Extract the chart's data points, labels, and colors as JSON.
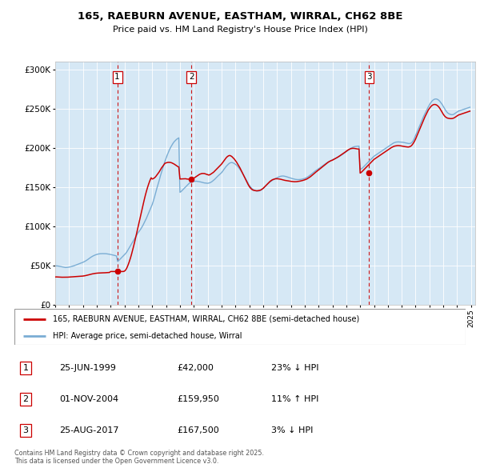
{
  "title": "165, RAEBURN AVENUE, EASTHAM, WIRRAL, CH62 8BE",
  "subtitle": "Price paid vs. HM Land Registry's House Price Index (HPI)",
  "price_color": "#cc0000",
  "hpi_color": "#7aadd4",
  "shade_color": "#d6e8f5",
  "ylim": [
    0,
    310000
  ],
  "yticks": [
    0,
    50000,
    100000,
    150000,
    200000,
    250000,
    300000
  ],
  "ytick_labels": [
    "£0",
    "£50K",
    "£100K",
    "£150K",
    "£200K",
    "£250K",
    "£300K"
  ],
  "sales": [
    {
      "date_num": 1999.48,
      "price": 42000,
      "label": "1"
    },
    {
      "date_num": 2004.83,
      "price": 159950,
      "label": "2"
    },
    {
      "date_num": 2017.65,
      "price": 167500,
      "label": "3"
    }
  ],
  "sale_vline_color": "#cc0000",
  "transactions": [
    {
      "num": "1",
      "date": "25-JUN-1999",
      "price": "£42,000",
      "hpi_diff": "23% ↓ HPI"
    },
    {
      "num": "2",
      "date": "01-NOV-2004",
      "price": "£159,950",
      "hpi_diff": "11% ↑ HPI"
    },
    {
      "num": "3",
      "date": "25-AUG-2017",
      "price": "£167,500",
      "hpi_diff": "3% ↓ HPI"
    }
  ],
  "legend_price_label": "165, RAEBURN AVENUE, EASTHAM, WIRRAL, CH62 8BE (semi-detached house)",
  "legend_hpi_label": "HPI: Average price, semi-detached house, Wirral",
  "footer": "Contains HM Land Registry data © Crown copyright and database right 2025.\nThis data is licensed under the Open Government Licence v3.0.",
  "hpi_data_years": [
    1995.0,
    1995.083,
    1995.167,
    1995.25,
    1995.333,
    1995.417,
    1995.5,
    1995.583,
    1995.667,
    1995.75,
    1995.833,
    1995.917,
    1996.0,
    1996.083,
    1996.167,
    1996.25,
    1996.333,
    1996.417,
    1996.5,
    1996.583,
    1996.667,
    1996.75,
    1996.833,
    1996.917,
    1997.0,
    1997.083,
    1997.167,
    1997.25,
    1997.333,
    1997.417,
    1997.5,
    1997.583,
    1997.667,
    1997.75,
    1997.833,
    1997.917,
    1998.0,
    1998.083,
    1998.167,
    1998.25,
    1998.333,
    1998.417,
    1998.5,
    1998.583,
    1998.667,
    1998.75,
    1998.833,
    1998.917,
    1999.0,
    1999.083,
    1999.167,
    1999.25,
    1999.333,
    1999.417,
    1999.5,
    1999.583,
    1999.667,
    1999.75,
    1999.833,
    1999.917,
    2000.0,
    2000.083,
    2000.167,
    2000.25,
    2000.333,
    2000.417,
    2000.5,
    2000.583,
    2000.667,
    2000.75,
    2000.833,
    2000.917,
    2001.0,
    2001.083,
    2001.167,
    2001.25,
    2001.333,
    2001.417,
    2001.5,
    2001.583,
    2001.667,
    2001.75,
    2001.833,
    2001.917,
    2002.0,
    2002.083,
    2002.167,
    2002.25,
    2002.333,
    2002.417,
    2002.5,
    2002.583,
    2002.667,
    2002.75,
    2002.833,
    2002.917,
    2003.0,
    2003.083,
    2003.167,
    2003.25,
    2003.333,
    2003.417,
    2003.5,
    2003.583,
    2003.667,
    2003.75,
    2003.833,
    2003.917,
    2004.0,
    2004.083,
    2004.167,
    2004.25,
    2004.333,
    2004.417,
    2004.5,
    2004.583,
    2004.667,
    2004.75,
    2004.833,
    2004.917,
    2005.0,
    2005.083,
    2005.167,
    2005.25,
    2005.333,
    2005.417,
    2005.5,
    2005.583,
    2005.667,
    2005.75,
    2005.833,
    2005.917,
    2006.0,
    2006.083,
    2006.167,
    2006.25,
    2006.333,
    2006.417,
    2006.5,
    2006.583,
    2006.667,
    2006.75,
    2006.833,
    2006.917,
    2007.0,
    2007.083,
    2007.167,
    2007.25,
    2007.333,
    2007.417,
    2007.5,
    2007.583,
    2007.667,
    2007.75,
    2007.833,
    2007.917,
    2008.0,
    2008.083,
    2008.167,
    2008.25,
    2008.333,
    2008.417,
    2008.5,
    2008.583,
    2008.667,
    2008.75,
    2008.833,
    2008.917,
    2009.0,
    2009.083,
    2009.167,
    2009.25,
    2009.333,
    2009.417,
    2009.5,
    2009.583,
    2009.667,
    2009.75,
    2009.833,
    2009.917,
    2010.0,
    2010.083,
    2010.167,
    2010.25,
    2010.333,
    2010.417,
    2010.5,
    2010.583,
    2010.667,
    2010.75,
    2010.833,
    2010.917,
    2011.0,
    2011.083,
    2011.167,
    2011.25,
    2011.333,
    2011.417,
    2011.5,
    2011.583,
    2011.667,
    2011.75,
    2011.833,
    2011.917,
    2012.0,
    2012.083,
    2012.167,
    2012.25,
    2012.333,
    2012.417,
    2012.5,
    2012.583,
    2012.667,
    2012.75,
    2012.833,
    2012.917,
    2013.0,
    2013.083,
    2013.167,
    2013.25,
    2013.333,
    2013.417,
    2013.5,
    2013.583,
    2013.667,
    2013.75,
    2013.833,
    2013.917,
    2014.0,
    2014.083,
    2014.167,
    2014.25,
    2014.333,
    2014.417,
    2014.5,
    2014.583,
    2014.667,
    2014.75,
    2014.833,
    2014.917,
    2015.0,
    2015.083,
    2015.167,
    2015.25,
    2015.333,
    2015.417,
    2015.5,
    2015.583,
    2015.667,
    2015.75,
    2015.833,
    2015.917,
    2016.0,
    2016.083,
    2016.167,
    2016.25,
    2016.333,
    2016.417,
    2016.5,
    2016.583,
    2016.667,
    2016.75,
    2016.833,
    2016.917,
    2017.0,
    2017.083,
    2017.167,
    2017.25,
    2017.333,
    2017.417,
    2017.5,
    2017.583,
    2017.667,
    2017.75,
    2017.833,
    2017.917,
    2018.0,
    2018.083,
    2018.167,
    2018.25,
    2018.333,
    2018.417,
    2018.5,
    2018.583,
    2018.667,
    2018.75,
    2018.833,
    2018.917,
    2019.0,
    2019.083,
    2019.167,
    2019.25,
    2019.333,
    2019.417,
    2019.5,
    2019.583,
    2019.667,
    2019.75,
    2019.833,
    2019.917,
    2020.0,
    2020.083,
    2020.167,
    2020.25,
    2020.333,
    2020.417,
    2020.5,
    2020.583,
    2020.667,
    2020.75,
    2020.833,
    2020.917,
    2021.0,
    2021.083,
    2021.167,
    2021.25,
    2021.333,
    2021.417,
    2021.5,
    2021.583,
    2021.667,
    2021.75,
    2021.833,
    2021.917,
    2022.0,
    2022.083,
    2022.167,
    2022.25,
    2022.333,
    2022.417,
    2022.5,
    2022.583,
    2022.667,
    2022.75,
    2022.833,
    2022.917,
    2023.0,
    2023.083,
    2023.167,
    2023.25,
    2023.333,
    2023.417,
    2023.5,
    2023.583,
    2023.667,
    2023.75,
    2023.833,
    2023.917,
    2024.0,
    2024.083,
    2024.167,
    2024.25,
    2024.333,
    2024.417,
    2024.5,
    2024.583,
    2024.667,
    2024.75,
    2024.833,
    2024.917
  ],
  "hpi_data_values": [
    49000,
    49200,
    49100,
    48800,
    48500,
    48200,
    47900,
    47600,
    47300,
    47100,
    47200,
    47400,
    47600,
    47900,
    48300,
    48700,
    49200,
    49700,
    50300,
    50900,
    51500,
    52100,
    52600,
    53100,
    53700,
    54400,
    55200,
    56100,
    57100,
    58200,
    59300,
    60300,
    61200,
    62000,
    62700,
    63300,
    63800,
    64200,
    64500,
    64700,
    64800,
    64800,
    64800,
    64800,
    64700,
    64500,
    64300,
    64000,
    63700,
    63400,
    63000,
    62600,
    62200,
    61900,
    55000,
    56000,
    57500,
    59000,
    60500,
    62000,
    63500,
    65000,
    67000,
    69500,
    72000,
    74500,
    77000,
    79500,
    82000,
    84500,
    87000,
    89500,
    92000,
    94000,
    96000,
    98500,
    101000,
    104000,
    107000,
    110000,
    113500,
    117000,
    120500,
    124000,
    127500,
    132000,
    137000,
    142500,
    148000,
    153000,
    158000,
    163500,
    168500,
    173500,
    178000,
    182500,
    186500,
    190500,
    194000,
    197500,
    200500,
    203000,
    205500,
    207500,
    209000,
    210500,
    211500,
    212500,
    143000,
    144000,
    145500,
    147000,
    148500,
    150000,
    151500,
    153000,
    154500,
    155500,
    156000,
    156500,
    156800,
    157000,
    157200,
    157000,
    156800,
    156500,
    156200,
    155800,
    155400,
    155000,
    154800,
    154500,
    154500,
    154800,
    155200,
    156000,
    157000,
    158200,
    159500,
    161000,
    162500,
    164000,
    165300,
    166500,
    168000,
    170000,
    172000,
    174000,
    176000,
    177500,
    179000,
    180200,
    180800,
    181000,
    180500,
    179800,
    178800,
    177500,
    176000,
    174200,
    172200,
    170000,
    167700,
    165200,
    162500,
    159700,
    157000,
    154400,
    152000,
    150000,
    148300,
    147000,
    146000,
    145200,
    144700,
    144500,
    144600,
    145000,
    145700,
    146700,
    147900,
    149300,
    150800,
    152300,
    153700,
    155000,
    156200,
    157300,
    158300,
    159200,
    160000,
    160800,
    161600,
    162300,
    162900,
    163400,
    163700,
    163800,
    163700,
    163400,
    163000,
    162500,
    162000,
    161500,
    161000,
    160600,
    160200,
    159800,
    159500,
    159300,
    159200,
    159200,
    159300,
    159500,
    159800,
    160200,
    160700,
    161300,
    162100,
    163000,
    164100,
    165200,
    166400,
    167600,
    168800,
    170000,
    171000,
    172000,
    173100,
    174100,
    175200,
    176300,
    177400,
    178500,
    179500,
    180500,
    181400,
    182200,
    183000,
    183700,
    184400,
    185100,
    185800,
    186500,
    187200,
    188000,
    188800,
    189700,
    190600,
    191600,
    192600,
    193700,
    194800,
    196000,
    197100,
    198200,
    199200,
    200000,
    200700,
    201200,
    201500,
    201700,
    201800,
    201900,
    172000,
    173000,
    174000,
    175500,
    177000,
    178500,
    180000,
    181500,
    183000,
    184500,
    186000,
    187500,
    189000,
    190000,
    191000,
    192000,
    193000,
    194000,
    195000,
    196000,
    197000,
    198000,
    199000,
    200000,
    201000,
    202000,
    203000,
    204000,
    205000,
    206000,
    206500,
    207000,
    207200,
    207300,
    207200,
    207100,
    207000,
    206800,
    206500,
    206200,
    205900,
    205600,
    205200,
    205200,
    205700,
    207000,
    209000,
    212000,
    215500,
    219000,
    222500,
    226000,
    229500,
    233000,
    236500,
    240000,
    243000,
    246000,
    249000,
    252000,
    254500,
    257000,
    259000,
    260500,
    261500,
    262000,
    262000,
    261500,
    260500,
    259000,
    257000,
    255000,
    252500,
    250000,
    247500,
    245500,
    244000,
    243000,
    242500,
    242000,
    242000,
    242500,
    243500,
    244500,
    245500,
    246500,
    247000,
    247500,
    248000,
    248500,
    249000,
    249500,
    250000,
    250500,
    251000,
    251500
  ],
  "price_data_years": [
    1995.0,
    1995.083,
    1995.167,
    1995.25,
    1995.333,
    1995.417,
    1995.5,
    1995.583,
    1995.667,
    1995.75,
    1995.833,
    1995.917,
    1996.0,
    1996.083,
    1996.167,
    1996.25,
    1996.333,
    1996.417,
    1996.5,
    1996.583,
    1996.667,
    1996.75,
    1996.833,
    1996.917,
    1997.0,
    1997.083,
    1997.167,
    1997.25,
    1997.333,
    1997.417,
    1997.5,
    1997.583,
    1997.667,
    1997.75,
    1997.833,
    1997.917,
    1998.0,
    1998.083,
    1998.167,
    1998.25,
    1998.333,
    1998.417,
    1998.5,
    1998.583,
    1998.667,
    1998.75,
    1998.833,
    1998.917,
    1999.0,
    1999.083,
    1999.167,
    1999.25,
    1999.333,
    1999.417,
    1999.5,
    1999.583,
    1999.667,
    1999.75,
    1999.833,
    1999.917,
    2000.0,
    2000.083,
    2000.167,
    2000.25,
    2000.333,
    2000.417,
    2000.5,
    2000.583,
    2000.667,
    2000.75,
    2000.833,
    2000.917,
    2001.0,
    2001.083,
    2001.167,
    2001.25,
    2001.333,
    2001.417,
    2001.5,
    2001.583,
    2001.667,
    2001.75,
    2001.833,
    2001.917,
    2002.0,
    2002.083,
    2002.167,
    2002.25,
    2002.333,
    2002.417,
    2002.5,
    2002.583,
    2002.667,
    2002.75,
    2002.833,
    2002.917,
    2003.0,
    2003.083,
    2003.167,
    2003.25,
    2003.333,
    2003.417,
    2003.5,
    2003.583,
    2003.667,
    2003.75,
    2003.833,
    2003.917,
    2004.0,
    2004.083,
    2004.167,
    2004.25,
    2004.333,
    2004.417,
    2004.5,
    2004.583,
    2004.667,
    2004.75,
    2004.833,
    2004.917,
    2005.0,
    2005.083,
    2005.167,
    2005.25,
    2005.333,
    2005.417,
    2005.5,
    2005.583,
    2005.667,
    2005.75,
    2005.833,
    2005.917,
    2006.0,
    2006.083,
    2006.167,
    2006.25,
    2006.333,
    2006.417,
    2006.5,
    2006.583,
    2006.667,
    2006.75,
    2006.833,
    2006.917,
    2007.0,
    2007.083,
    2007.167,
    2007.25,
    2007.333,
    2007.417,
    2007.5,
    2007.583,
    2007.667,
    2007.75,
    2007.833,
    2007.917,
    2008.0,
    2008.083,
    2008.167,
    2008.25,
    2008.333,
    2008.417,
    2008.5,
    2008.583,
    2008.667,
    2008.75,
    2008.833,
    2008.917,
    2009.0,
    2009.083,
    2009.167,
    2009.25,
    2009.333,
    2009.417,
    2009.5,
    2009.583,
    2009.667,
    2009.75,
    2009.833,
    2009.917,
    2010.0,
    2010.083,
    2010.167,
    2010.25,
    2010.333,
    2010.417,
    2010.5,
    2010.583,
    2010.667,
    2010.75,
    2010.833,
    2010.917,
    2011.0,
    2011.083,
    2011.167,
    2011.25,
    2011.333,
    2011.417,
    2011.5,
    2011.583,
    2011.667,
    2011.75,
    2011.833,
    2011.917,
    2012.0,
    2012.083,
    2012.167,
    2012.25,
    2012.333,
    2012.417,
    2012.5,
    2012.583,
    2012.667,
    2012.75,
    2012.833,
    2012.917,
    2013.0,
    2013.083,
    2013.167,
    2013.25,
    2013.333,
    2013.417,
    2013.5,
    2013.583,
    2013.667,
    2013.75,
    2013.833,
    2013.917,
    2014.0,
    2014.083,
    2014.167,
    2014.25,
    2014.333,
    2014.417,
    2014.5,
    2014.583,
    2014.667,
    2014.75,
    2014.833,
    2014.917,
    2015.0,
    2015.083,
    2015.167,
    2015.25,
    2015.333,
    2015.417,
    2015.5,
    2015.583,
    2015.667,
    2015.75,
    2015.833,
    2015.917,
    2016.0,
    2016.083,
    2016.167,
    2016.25,
    2016.333,
    2016.417,
    2016.5,
    2016.583,
    2016.667,
    2016.75,
    2016.833,
    2016.917,
    2017.0,
    2017.083,
    2017.167,
    2017.25,
    2017.333,
    2017.417,
    2017.5,
    2017.583,
    2017.667,
    2017.75,
    2017.833,
    2017.917,
    2018.0,
    2018.083,
    2018.167,
    2018.25,
    2018.333,
    2018.417,
    2018.5,
    2018.583,
    2018.667,
    2018.75,
    2018.833,
    2018.917,
    2019.0,
    2019.083,
    2019.167,
    2019.25,
    2019.333,
    2019.417,
    2019.5,
    2019.583,
    2019.667,
    2019.75,
    2019.833,
    2019.917,
    2020.0,
    2020.083,
    2020.167,
    2020.25,
    2020.333,
    2020.417,
    2020.5,
    2020.583,
    2020.667,
    2020.75,
    2020.833,
    2020.917,
    2021.0,
    2021.083,
    2021.167,
    2021.25,
    2021.333,
    2021.417,
    2021.5,
    2021.583,
    2021.667,
    2021.75,
    2021.833,
    2021.917,
    2022.0,
    2022.083,
    2022.167,
    2022.25,
    2022.333,
    2022.417,
    2022.5,
    2022.583,
    2022.667,
    2022.75,
    2022.833,
    2022.917,
    2023.0,
    2023.083,
    2023.167,
    2023.25,
    2023.333,
    2023.417,
    2023.5,
    2023.583,
    2023.667,
    2023.75,
    2023.833,
    2023.917,
    2024.0,
    2024.083,
    2024.167,
    2024.25,
    2024.333,
    2024.417,
    2024.5,
    2024.583,
    2024.667,
    2024.75,
    2024.833,
    2024.917
  ],
  "price_data_values": [
    35000,
    35100,
    35000,
    35000,
    34900,
    34800,
    34700,
    34700,
    34600,
    34600,
    34700,
    34800,
    34900,
    35000,
    35100,
    35200,
    35300,
    35400,
    35500,
    35600,
    35700,
    35800,
    35900,
    36000,
    36200,
    36400,
    36700,
    37000,
    37400,
    37800,
    38200,
    38600,
    38900,
    39200,
    39500,
    39700,
    39900,
    40000,
    40100,
    40200,
    40200,
    40300,
    40300,
    40400,
    40500,
    40600,
    40700,
    40800,
    42000,
    42000,
    42000,
    42000,
    42000,
    42000,
    42000,
    42000,
    42000,
    42000,
    42000,
    42000,
    42500,
    44000,
    46500,
    50000,
    54000,
    58500,
    63500,
    69000,
    75000,
    81000,
    87500,
    94000,
    100500,
    107000,
    113500,
    120000,
    126500,
    133000,
    139000,
    144500,
    149500,
    154000,
    158000,
    161500,
    159950,
    160500,
    161500,
    163000,
    165000,
    167000,
    169000,
    171500,
    174000,
    176000,
    178000,
    180000,
    180500,
    181000,
    181200,
    181200,
    181000,
    180500,
    179800,
    179000,
    178000,
    177000,
    176000,
    175200,
    159950,
    160000,
    160100,
    160200,
    160300,
    160300,
    159950,
    159800,
    159700,
    159600,
    159500,
    159400,
    161000,
    162000,
    163000,
    164000,
    165000,
    166000,
    166500,
    167000,
    167000,
    167000,
    166500,
    166000,
    165500,
    165000,
    165500,
    166500,
    167500,
    168500,
    170000,
    171500,
    173000,
    174500,
    176000,
    177500,
    179000,
    181000,
    183000,
    185000,
    187000,
    188500,
    189500,
    190000,
    189500,
    188500,
    187000,
    185500,
    183500,
    181500,
    179000,
    176500,
    174000,
    171000,
    168000,
    165000,
    162000,
    159000,
    156000,
    153000,
    150500,
    148500,
    147000,
    146000,
    145500,
    145200,
    145000,
    145000,
    145200,
    145500,
    146000,
    147000,
    148000,
    149500,
    151000,
    152500,
    154000,
    155500,
    157000,
    158000,
    159000,
    159500,
    160000,
    160300,
    160300,
    160200,
    160000,
    159700,
    159300,
    158800,
    158500,
    158200,
    158000,
    157800,
    157500,
    157200,
    157000,
    156800,
    156600,
    156500,
    156500,
    156600,
    156800,
    157000,
    157300,
    157600,
    158000,
    158400,
    158900,
    159500,
    160100,
    161000,
    162000,
    163000,
    164200,
    165500,
    166700,
    168000,
    169200,
    170300,
    171500,
    172700,
    173800,
    175000,
    176200,
    177500,
    178700,
    179900,
    181000,
    182000,
    182800,
    183500,
    184000,
    184800,
    185700,
    186500,
    187300,
    188200,
    189200,
    190200,
    191200,
    192200,
    193200,
    194300,
    195400,
    196500,
    197400,
    198200,
    198700,
    199000,
    199100,
    199000,
    198700,
    198400,
    198200,
    198200,
    167500,
    168500,
    170000,
    171500,
    173000,
    174500,
    176000,
    177500,
    179000,
    180500,
    182000,
    183500,
    185000,
    186000,
    187000,
    188000,
    189000,
    190000,
    191000,
    192000,
    193000,
    194000,
    195000,
    196000,
    197000,
    198000,
    199000,
    200000,
    200800,
    201500,
    202000,
    202300,
    202500,
    202600,
    202500,
    202300,
    202000,
    201800,
    201500,
    201200,
    201000,
    200800,
    200800,
    201200,
    202000,
    203500,
    205500,
    208000,
    211000,
    214500,
    218000,
    221500,
    225000,
    228500,
    232000,
    235500,
    239000,
    242000,
    245000,
    248000,
    250000,
    252000,
    253500,
    254500,
    255000,
    255000,
    254500,
    253500,
    252000,
    250000,
    247500,
    245000,
    242500,
    240500,
    239000,
    238000,
    237500,
    237200,
    237000,
    237000,
    237200,
    237700,
    238500,
    239500,
    240500,
    241500,
    242000,
    242500,
    243000,
    243500,
    244000,
    244500,
    245000,
    245500,
    246000,
    246500
  ]
}
